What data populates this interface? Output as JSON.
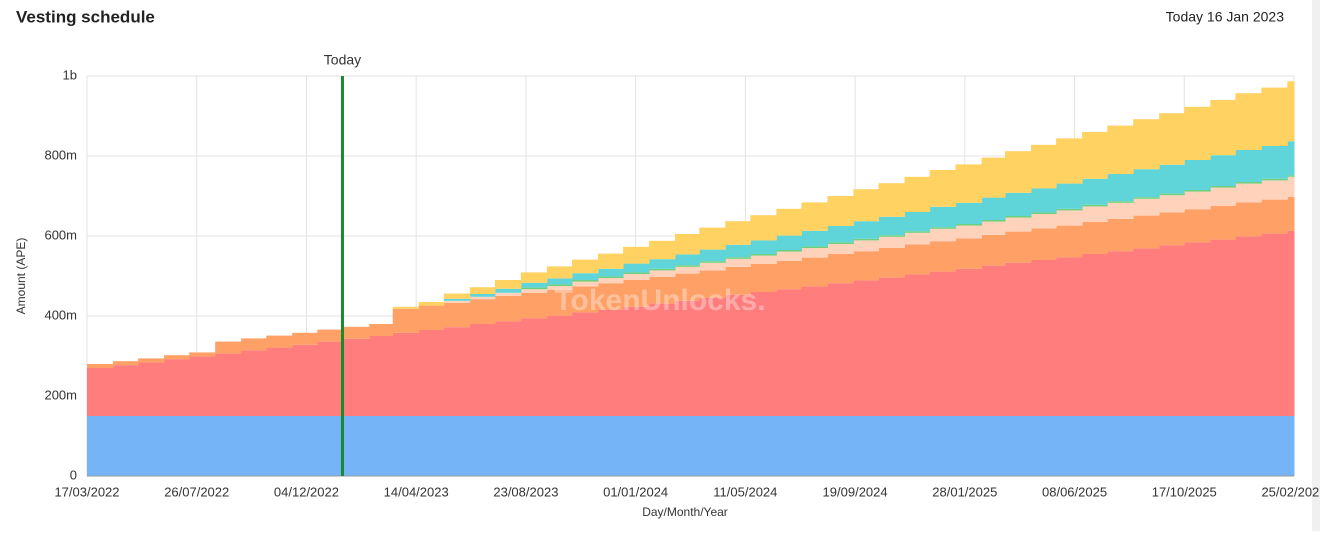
{
  "header": {
    "title": "Vesting schedule",
    "today": "Today 16 Jan 2023"
  },
  "chart_data": {
    "type": "stacked-step-area",
    "xlabel": "Day/Month/Year",
    "ylabel": "Amount (APE)",
    "watermark": "TokenUnlocks.",
    "annotation": {
      "label": "Today",
      "x": "16/01/2023",
      "color": "#1a8a2a"
    },
    "xlim": [
      "17/03/2022",
      "25/02/2026"
    ],
    "xticks": [
      "17/03/2022",
      "26/07/2022",
      "04/12/2022",
      "14/04/2023",
      "23/08/2023",
      "01/01/2024",
      "11/05/2024",
      "19/09/2024",
      "28/01/2025",
      "08/06/2025",
      "17/10/2025",
      "25/02/2026"
    ],
    "ylim": [
      0,
      1000000000
    ],
    "yticks": [
      {
        "value": 0,
        "label": "0"
      },
      {
        "value": 200000000,
        "label": "200m"
      },
      {
        "value": 400000000,
        "label": "400m"
      },
      {
        "value": 600000000,
        "label": "600m"
      },
      {
        "value": 800000000,
        "label": "800m"
      },
      {
        "value": 1000000000,
        "label": "1b"
      }
    ],
    "grid": true,
    "x": [
      "17/03/2022",
      "17/04/2022",
      "17/05/2022",
      "17/06/2022",
      "17/07/2022",
      "17/08/2022",
      "17/09/2022",
      "17/10/2022",
      "17/11/2022",
      "17/12/2022",
      "17/01/2023",
      "17/02/2023",
      "17/03/2023",
      "17/04/2023",
      "17/05/2023",
      "17/06/2023",
      "17/07/2023",
      "17/08/2023",
      "17/09/2023",
      "17/10/2023",
      "17/11/2023",
      "17/12/2023",
      "17/01/2024",
      "17/02/2024",
      "17/03/2024",
      "17/04/2024",
      "17/05/2024",
      "17/06/2024",
      "17/07/2024",
      "17/08/2024",
      "17/09/2024",
      "17/10/2024",
      "17/11/2024",
      "17/12/2024",
      "17/01/2025",
      "17/02/2025",
      "17/03/2025",
      "17/04/2025",
      "17/05/2025",
      "17/06/2025",
      "17/07/2025",
      "17/08/2025",
      "17/09/2025",
      "17/10/2025",
      "17/11/2025",
      "17/12/2025",
      "17/01/2026",
      "17/02/2026"
    ],
    "series": [
      {
        "color": "#76b4f8",
        "values": [
          150000000.0,
          150000000.0,
          150000000.0,
          150000000.0,
          150000000.0,
          150000000.0,
          150000000.0,
          150000000.0,
          150000000.0,
          150000000.0,
          150000000.0,
          150000000.0,
          150000000.0,
          150000000.0,
          150000000.0,
          150000000.0,
          150000000.0,
          150000000.0,
          150000000.0,
          150000000.0,
          150000000.0,
          150000000.0,
          150000000.0,
          150000000.0,
          150000000.0,
          150000000.0,
          150000000.0,
          150000000.0,
          150000000.0,
          150000000.0,
          150000000.0,
          150000000.0,
          150000000.0,
          150000000.0,
          150000000.0,
          150000000.0,
          150000000.0,
          150000000.0,
          150000000.0,
          150000000.0,
          150000000.0,
          150000000.0,
          150000000.0,
          150000000.0,
          150000000.0,
          150000000.0,
          150000000.0,
          150000000.0
        ]
      },
      {
        "color": "#ff7d7d",
        "values": [
          120000000.0,
          127000000.0,
          134000000.0,
          142000000.0,
          149000000.0,
          156000000.0,
          164000000.0,
          171000000.0,
          178000000.0,
          186000000.0,
          193000000.0,
          200000000.0,
          208000000.0,
          215000000.0,
          222000000.0,
          230000000.0,
          237000000.0,
          244000000.0,
          251000000.0,
          259000000.0,
          266000000.0,
          273000000.0,
          281000000.0,
          288000000.0,
          295000000.0,
          303000000.0,
          310000000.0,
          317000000.0,
          324000000.0,
          332000000.0,
          339000000.0,
          346000000.0,
          354000000.0,
          361000000.0,
          368000000.0,
          376000000.0,
          383000000.0,
          390000000.0,
          397000000.0,
          405000000.0,
          412000000.0,
          419000000.0,
          427000000.0,
          434000000.0,
          441000000.0,
          449000000.0,
          456000000.0,
          463000000.0
        ]
      },
      {
        "color": "#ffa066",
        "values": [
          10000000.0,
          10000000.0,
          10000000.0,
          10000000.0,
          10000000.0,
          30000000.0,
          30000000.0,
          30000000.0,
          30000000.0,
          30000000.0,
          30000000.0,
          30000000.0,
          60000000.0,
          61000000.0,
          61000000.0,
          62000000.0,
          63000000.0,
          64000000.0,
          64000000.0,
          65000000.0,
          66000000.0,
          67000000.0,
          67000000.0,
          68000000.0,
          69000000.0,
          70000000.0,
          70000000.0,
          71000000.0,
          72000000.0,
          73000000.0,
          73000000.0,
          74000000.0,
          75000000.0,
          76000000.0,
          76000000.0,
          77000000.0,
          78000000.0,
          79000000.0,
          79000000.0,
          80000000.0,
          81000000.0,
          82000000.0,
          82000000.0,
          83000000.0,
          84000000.0,
          85000000.0,
          85000000.0,
          85000000.0
        ]
      },
      {
        "color": "#ffd2bb",
        "values": [
          0,
          0,
          0,
          0,
          0,
          0,
          0,
          0,
          0,
          0,
          0,
          0,
          0,
          0,
          5000000.0,
          6000000.0,
          8000000.0,
          9000000.0,
          10000000.0,
          12000000.0,
          13000000.0,
          15000000.0,
          16000000.0,
          17000000.0,
          19000000.0,
          20000000.0,
          21000000.0,
          23000000.0,
          24000000.0,
          25000000.0,
          27000000.0,
          28000000.0,
          29000000.0,
          31000000.0,
          32000000.0,
          33000000.0,
          35000000.0,
          36000000.0,
          38000000.0,
          39000000.0,
          40000000.0,
          42000000.0,
          43000000.0,
          44000000.0,
          46000000.0,
          47000000.0,
          48000000.0,
          50000000.0
        ]
      },
      {
        "color": "#6fcf7f",
        "values": [
          0,
          0,
          0,
          0,
          0,
          0,
          0,
          0,
          0,
          0,
          0,
          0,
          0,
          0,
          0,
          0,
          0,
          4000000.0,
          4000000.0,
          4000000.0,
          4000000.0,
          4000000.0,
          4000000.0,
          4000000.0,
          4000000.0,
          4000000.0,
          4000000.0,
          4000000.0,
          4000000.0,
          4000000.0,
          4000000.0,
          4000000.0,
          4000000.0,
          4000000.0,
          4000000.0,
          4000000.0,
          4000000.0,
          4000000.0,
          4000000.0,
          4000000.0,
          4000000.0,
          4000000.0,
          4000000.0,
          4000000.0,
          4000000.0,
          4000000.0,
          4000000.0,
          4000000.0
        ]
      },
      {
        "color": "#5fd5d9",
        "values": [
          0,
          0,
          0,
          0,
          0,
          0,
          0,
          0,
          0,
          0,
          0,
          0,
          0,
          0,
          5000000.0,
          7000000.0,
          10000000.0,
          12000000.0,
          15000000.0,
          17000000.0,
          19000000.0,
          22000000.0,
          24000000.0,
          27000000.0,
          29000000.0,
          31000000.0,
          34000000.0,
          36000000.0,
          39000000.0,
          41000000.0,
          44000000.0,
          46000000.0,
          48000000.0,
          51000000.0,
          53000000.0,
          56000000.0,
          58000000.0,
          60000000.0,
          63000000.0,
          65000000.0,
          68000000.0,
          70000000.0,
          72000000.0,
          75000000.0,
          77000000.0,
          80000000.0,
          82000000.0,
          85000000.0
        ]
      },
      {
        "color": "#ffd262",
        "values": [
          0,
          0,
          0,
          0,
          0,
          0,
          0,
          0,
          0,
          0,
          0,
          0,
          5000000.0,
          9000000.0,
          13000000.0,
          17000000.0,
          22000000.0,
          26000000.0,
          30000000.0,
          34000000.0,
          38000000.0,
          42000000.0,
          46000000.0,
          51000000.0,
          55000000.0,
          59000000.0,
          63000000.0,
          67000000.0,
          71000000.0,
          75000000.0,
          80000000.0,
          84000000.0,
          88000000.0,
          92000000.0,
          96000000.0,
          100000000.0,
          104000000.0,
          109000000.0,
          113000000.0,
          117000000.0,
          121000000.0,
          125000000.0,
          129000000.0,
          133000000.0,
          138000000.0,
          142000000.0,
          146000000.0,
          150000000.0
        ]
      }
    ]
  }
}
